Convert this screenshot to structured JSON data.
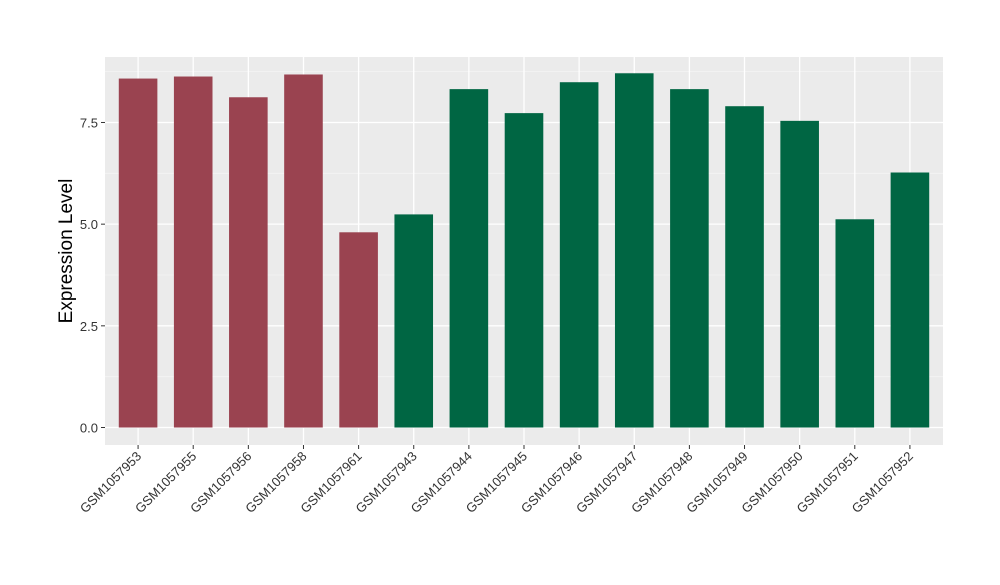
{
  "chart_data": {
    "type": "bar",
    "title": "",
    "xlabel": "",
    "ylabel": "Expression Level",
    "ylim": [
      -0.43,
      9.11
    ],
    "yticks": [
      "0.0",
      "2.5",
      "5.0",
      "7.5"
    ],
    "ytick_values": [
      0,
      2.5,
      5,
      7.5
    ],
    "grid": true,
    "categories": [
      "GSM1057953",
      "GSM1057955",
      "GSM1057956",
      "GSM1057958",
      "GSM1057961",
      "GSM1057943",
      "GSM1057944",
      "GSM1057945",
      "GSM1057946",
      "GSM1057947",
      "GSM1057948",
      "GSM1057949",
      "GSM1057950",
      "GSM1057951",
      "GSM1057952"
    ],
    "values": [
      8.58,
      8.63,
      8.12,
      8.68,
      4.8,
      5.24,
      8.32,
      7.73,
      8.49,
      8.71,
      8.32,
      7.9,
      7.54,
      5.12,
      6.27
    ],
    "groups": [
      0,
      0,
      0,
      0,
      0,
      1,
      1,
      1,
      1,
      1,
      1,
      1,
      1,
      1,
      1
    ],
    "group_colors": [
      "#9a4350",
      "#006643"
    ]
  }
}
